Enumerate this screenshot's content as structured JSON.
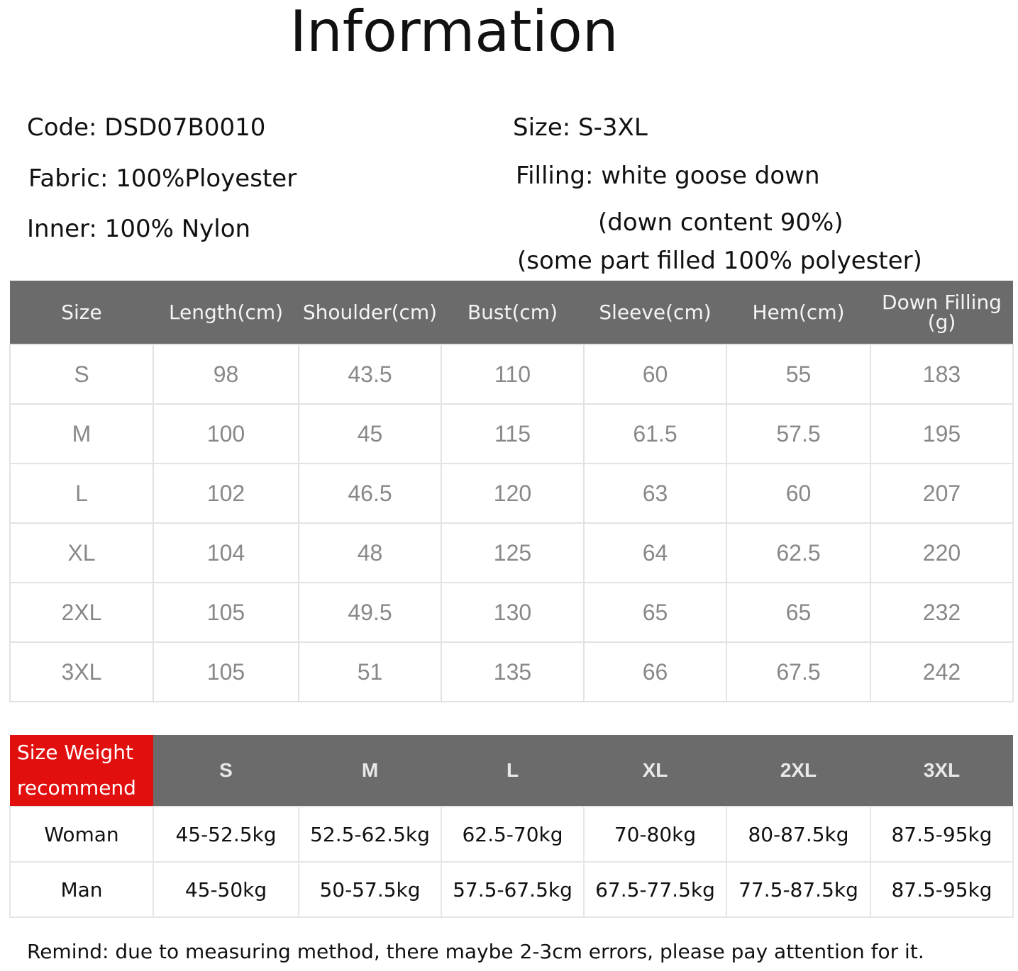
{
  "title": "Information",
  "info": {
    "code": "Code: DSD07B0010",
    "fabric": "Fabric: 100%Ployester",
    "inner": "Inner: 100% Nylon",
    "size": "Size: S-3XL",
    "filling": "Filling: white goose down",
    "down_content": "(down content 90%)",
    "some_part": "(some part filled 100% polyester)"
  },
  "size_table": {
    "headers": [
      "Size",
      "Length(cm)",
      "Shoulder(cm)",
      "Bust(cm)",
      "Sleeve(cm)",
      "Hem(cm)",
      "Down Filling (g)"
    ],
    "rows": [
      [
        "S",
        "98",
        "43.5",
        "110",
        "60",
        "55",
        "183"
      ],
      [
        "M",
        "100",
        "45",
        "115",
        "61.5",
        "57.5",
        "195"
      ],
      [
        "L",
        "102",
        "46.5",
        "120",
        "63",
        "60",
        "207"
      ],
      [
        "XL",
        "104",
        "48",
        "125",
        "64",
        "62.5",
        "220"
      ],
      [
        "2XL",
        "105",
        "49.5",
        "130",
        "65",
        "65",
        "232"
      ],
      [
        "3XL",
        "105",
        "51",
        "135",
        "66",
        "67.5",
        "242"
      ]
    ]
  },
  "weight_table": {
    "corner": "Size Weight recommend",
    "corner_color": "#e20f0f",
    "headers": [
      "S",
      "M",
      "L",
      "XL",
      "2XL",
      "3XL"
    ],
    "rows": [
      [
        "Woman",
        "45-52.5kg",
        "52.5-62.5kg",
        "62.5-70kg",
        "70-80kg",
        "80-87.5kg",
        "87.5-95kg"
      ],
      [
        "Man",
        "45-50kg",
        "50-57.5kg",
        "57.5-67.5kg",
        "67.5-77.5kg",
        "77.5-87.5kg",
        "87.5-95kg"
      ]
    ]
  },
  "remind": "Remind: due to measuring method, there maybe 2-3cm errors, please pay attention for it."
}
